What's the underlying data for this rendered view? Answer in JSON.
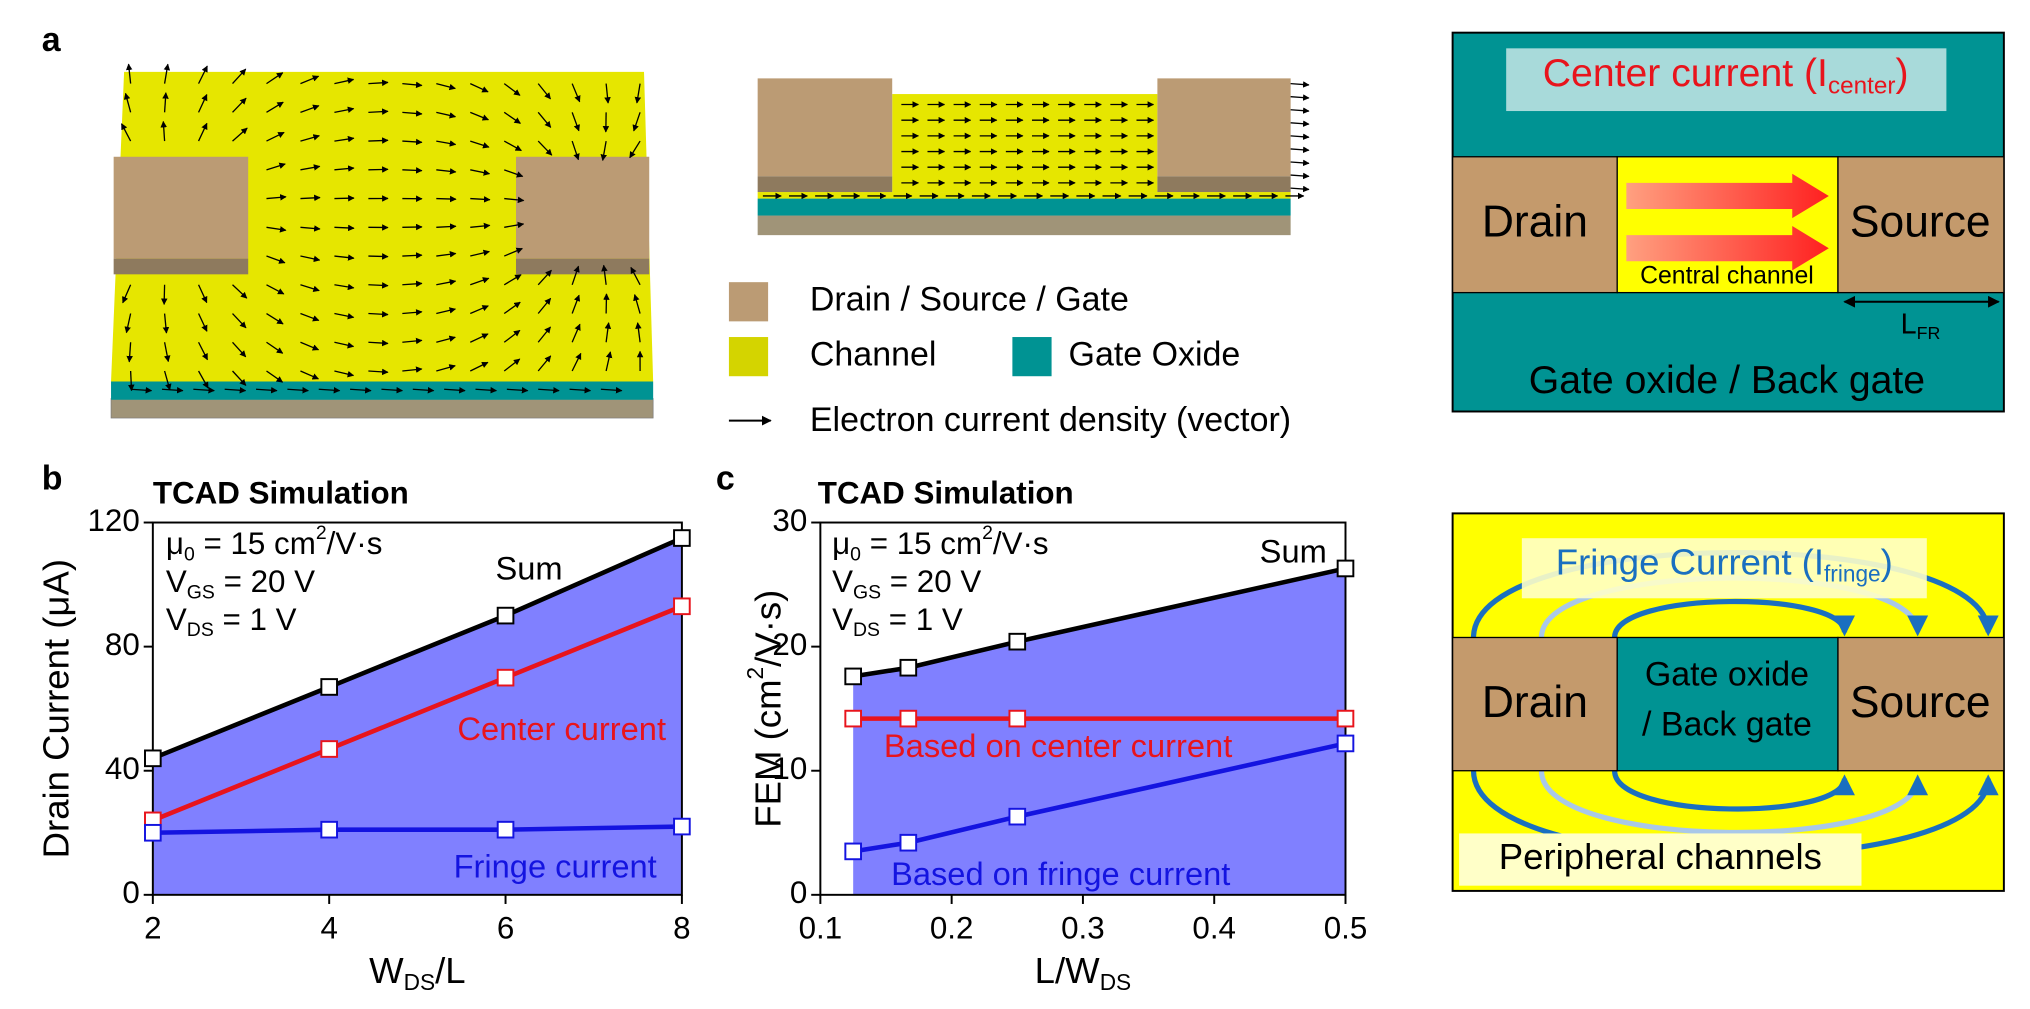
{
  "panel_labels": [
    "a",
    "b",
    "c"
  ],
  "legend": {
    "items": [
      {
        "label": "Drain / Source / Gate",
        "color": "#bb9b74"
      },
      {
        "label": "Channel",
        "color": "#d4d400"
      },
      {
        "label": "Gate Oxide",
        "color": "#009393"
      }
    ],
    "vector_label": "Electron current density (vector)"
  },
  "schematic_center": {
    "title": [
      {
        "text": "Center current (I"
      },
      {
        "text": "center",
        "script": "sub"
      },
      {
        "text": ")"
      }
    ],
    "drain": "Drain",
    "source": "Source",
    "channel": "Central channel",
    "length": [
      {
        "text": "L"
      },
      {
        "text": "FR",
        "script": "sub"
      }
    ],
    "bottom": "Gate oxide / Back gate"
  },
  "schematic_fringe": {
    "title": [
      {
        "text": "Fringe Current (I"
      },
      {
        "text": "fringe",
        "script": "sub"
      },
      {
        "text": ")"
      }
    ],
    "drain": "Drain",
    "source": "Source",
    "middle": [
      "Gate oxide",
      "/ Back gate"
    ],
    "bottom": "Peripheral channels"
  },
  "chart_data": [
    {
      "type": "line",
      "title": "TCAD Simulation",
      "annotations": [
        [
          {
            "text": "μ"
          },
          {
            "text": "0",
            "script": "sub"
          },
          {
            "text": " = 15 cm"
          },
          {
            "text": "2",
            "script": "sup"
          },
          {
            "text": "/V·s"
          }
        ],
        [
          {
            "text": "V"
          },
          {
            "text": "GS",
            "script": "sub"
          },
          {
            "text": " = 20 V"
          }
        ],
        [
          {
            "text": "V"
          },
          {
            "text": "DS",
            "script": "sub"
          },
          {
            "text": " = 1 V"
          }
        ]
      ],
      "xlabel": [
        {
          "text": "W"
        },
        {
          "text": "DS",
          "script": "sub"
        },
        {
          "text": "/L"
        }
      ],
      "ylabel": "Drain Current (μA)",
      "x": [
        2,
        4,
        6,
        8
      ],
      "series": [
        {
          "name": "Sum",
          "color": "#000000",
          "fill": "#8080ff",
          "values": [
            44,
            67,
            90,
            115
          ]
        },
        {
          "name": "Center current",
          "color": "#e8141c",
          "values": [
            24,
            47,
            70,
            93
          ]
        },
        {
          "name": "Fringe current",
          "color": "#1414e0",
          "values": [
            20,
            21,
            21,
            22
          ]
        }
      ],
      "marker": "square",
      "xlim": [
        2,
        8
      ],
      "xticks": [
        2,
        4,
        6,
        8
      ],
      "ylim": [
        0,
        120
      ],
      "yticks": [
        0,
        40,
        80,
        120
      ]
    },
    {
      "type": "line",
      "title": "TCAD Simulation",
      "annotations": [
        [
          {
            "text": "μ"
          },
          {
            "text": "0",
            "script": "sub"
          },
          {
            "text": " = 15 cm"
          },
          {
            "text": "2",
            "script": "sup"
          },
          {
            "text": "/V·s"
          }
        ],
        [
          {
            "text": "V"
          },
          {
            "text": "GS",
            "script": "sub"
          },
          {
            "text": " = 20 V"
          }
        ],
        [
          {
            "text": "V"
          },
          {
            "text": "DS",
            "script": "sub"
          },
          {
            "text": " = 1 V"
          }
        ]
      ],
      "xlabel": [
        {
          "text": "L/W"
        },
        {
          "text": "DS",
          "script": "sub"
        }
      ],
      "ylabel": [
        {
          "text": "FEM (cm"
        },
        {
          "text": "2",
          "script": "sup"
        },
        {
          "text": "/V·s)"
        }
      ],
      "x": [
        0.125,
        0.167,
        0.25,
        0.5
      ],
      "series": [
        {
          "name": "Sum",
          "color": "#000000",
          "fill": "#8080ff",
          "values": [
            17.6,
            18.3,
            20.4,
            26.3
          ]
        },
        {
          "name": "Based on center current",
          "color": "#e8141c",
          "values": [
            14.2,
            14.2,
            14.2,
            14.2
          ]
        },
        {
          "name": "Based on fringe current",
          "color": "#1414e0",
          "values": [
            3.5,
            4.2,
            6.3,
            12.2
          ]
        }
      ],
      "marker": "square",
      "xlim": [
        0.1,
        0.5
      ],
      "xticks": [
        0.1,
        0.2,
        0.3,
        0.4,
        0.5
      ],
      "ylim": [
        0,
        30
      ],
      "yticks": [
        0,
        10,
        20,
        30
      ]
    }
  ]
}
